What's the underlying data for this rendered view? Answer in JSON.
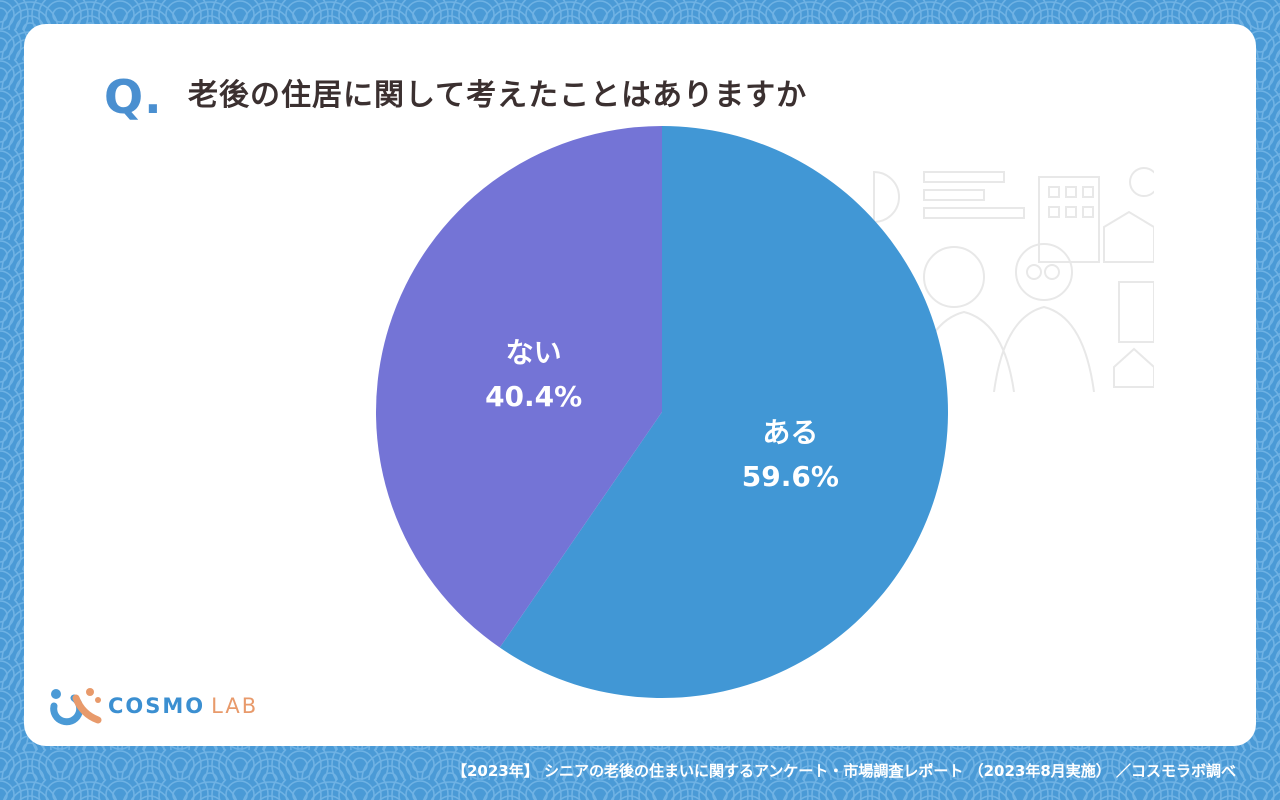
{
  "question": {
    "mark": "Q.",
    "text": "老後の住居に関して考えたことはありますか"
  },
  "chart_data": {
    "type": "pie",
    "title": "老後の住居に関して考えたことはありますか",
    "slices": [
      {
        "label": "ある",
        "value": 59.6,
        "value_label": "59.6%",
        "color": "#4197d5"
      },
      {
        "label": "ない",
        "value": 40.4,
        "value_label": "40.4%",
        "color": "#7474d6"
      }
    ],
    "start": "12 o'clock",
    "direction": "clockwise"
  },
  "logo": {
    "cosmo": "COSMO",
    "lab": "LAB"
  },
  "footer": {
    "source": "【2023年】 シニアの老後の住まいに関するアンケート・市場調査レポート （2023年8月実施） ／コスモラボ調べ"
  },
  "colors": {
    "background": "#4a9ad6",
    "card": "#ffffff",
    "accent": "#4a8fd0",
    "title_text": "#3b3030"
  }
}
